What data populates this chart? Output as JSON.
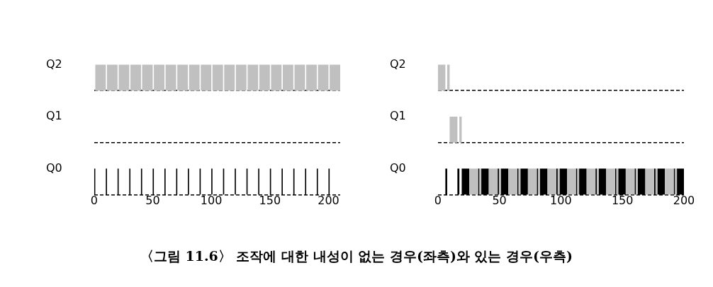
{
  "chart_data": [
    {
      "type": "bar",
      "orientation": "horizontal",
      "categories": [
        "Q2",
        "Q1",
        "Q0"
      ],
      "xlim": [
        0,
        210
      ],
      "xticks": [
        0,
        50,
        100,
        150,
        200
      ],
      "grid": "y",
      "legend": false,
      "annotations": [
        "〈그림 11.6〉 조작에 대한 내성이 없는 경우(좌측)와 있는 경우(우측)"
      ],
      "series": [
        {
          "color": "#c0c0c0",
          "base": [
            1,
            null,
            null
          ],
          "values": [
            9,
            null,
            null
          ]
        },
        {
          "color": "#c0c0c0",
          "base": [
            11,
            null,
            null
          ],
          "values": [
            9,
            null,
            null
          ]
        },
        {
          "color": "#c0c0c0",
          "base": [
            21,
            null,
            null
          ],
          "values": [
            9,
            null,
            null
          ]
        },
        {
          "color": "#c0c0c0",
          "base": [
            31,
            null,
            null
          ],
          "values": [
            9,
            null,
            null
          ]
        },
        {
          "color": "#c0c0c0",
          "base": [
            41,
            null,
            null
          ],
          "values": [
            9,
            null,
            null
          ]
        },
        {
          "color": "#c0c0c0",
          "base": [
            51,
            null,
            null
          ],
          "values": [
            9,
            null,
            null
          ]
        },
        {
          "color": "#c0c0c0",
          "base": [
            61,
            null,
            null
          ],
          "values": [
            9,
            null,
            null
          ]
        },
        {
          "color": "#c0c0c0",
          "base": [
            71,
            null,
            null
          ],
          "values": [
            9,
            null,
            null
          ]
        },
        {
          "color": "#c0c0c0",
          "base": [
            81,
            null,
            null
          ],
          "values": [
            9,
            null,
            null
          ]
        },
        {
          "color": "#c0c0c0",
          "base": [
            91,
            null,
            null
          ],
          "values": [
            9,
            null,
            null
          ]
        },
        {
          "color": "#c0c0c0",
          "base": [
            101,
            null,
            null
          ],
          "values": [
            9,
            null,
            null
          ]
        },
        {
          "color": "#c0c0c0",
          "base": [
            111,
            null,
            null
          ],
          "values": [
            9,
            null,
            null
          ]
        },
        {
          "color": "#c0c0c0",
          "base": [
            121,
            null,
            null
          ],
          "values": [
            9,
            null,
            null
          ]
        },
        {
          "color": "#c0c0c0",
          "base": [
            131,
            null,
            null
          ],
          "values": [
            9,
            null,
            null
          ]
        },
        {
          "color": "#c0c0c0",
          "base": [
            141,
            null,
            null
          ],
          "values": [
            9,
            null,
            null
          ]
        },
        {
          "color": "#c0c0c0",
          "base": [
            151,
            null,
            null
          ],
          "values": [
            9,
            null,
            null
          ]
        },
        {
          "color": "#c0c0c0",
          "base": [
            161,
            null,
            null
          ],
          "values": [
            9,
            null,
            null
          ]
        },
        {
          "color": "#c0c0c0",
          "base": [
            171,
            null,
            null
          ],
          "values": [
            9,
            null,
            null
          ]
        },
        {
          "color": "#c0c0c0",
          "base": [
            181,
            null,
            null
          ],
          "values": [
            9,
            null,
            null
          ]
        },
        {
          "color": "#c0c0c0",
          "base": [
            191,
            null,
            null
          ],
          "values": [
            9,
            null,
            null
          ]
        },
        {
          "color": "#c0c0c0",
          "base": [
            201,
            null,
            null
          ],
          "values": [
            9,
            null,
            null
          ]
        },
        {
          "color": "#000000",
          "base": [
            null,
            null,
            0
          ],
          "values": [
            null,
            null,
            1
          ]
        },
        {
          "color": "#000000",
          "base": [
            null,
            null,
            10
          ],
          "values": [
            null,
            null,
            1
          ]
        },
        {
          "color": "#000000",
          "base": [
            null,
            null,
            20
          ],
          "values": [
            null,
            null,
            1
          ]
        },
        {
          "color": "#000000",
          "base": [
            null,
            null,
            30
          ],
          "values": [
            null,
            null,
            1
          ]
        },
        {
          "color": "#000000",
          "base": [
            null,
            null,
            40
          ],
          "values": [
            null,
            null,
            1
          ]
        },
        {
          "color": "#000000",
          "base": [
            null,
            null,
            50
          ],
          "values": [
            null,
            null,
            1
          ]
        },
        {
          "color": "#000000",
          "base": [
            null,
            null,
            60
          ],
          "values": [
            null,
            null,
            1
          ]
        },
        {
          "color": "#000000",
          "base": [
            null,
            null,
            70
          ],
          "values": [
            null,
            null,
            1
          ]
        },
        {
          "color": "#000000",
          "base": [
            null,
            null,
            80
          ],
          "values": [
            null,
            null,
            1
          ]
        },
        {
          "color": "#000000",
          "base": [
            null,
            null,
            90
          ],
          "values": [
            null,
            null,
            1
          ]
        },
        {
          "color": "#000000",
          "base": [
            null,
            null,
            100
          ],
          "values": [
            null,
            null,
            1
          ]
        },
        {
          "color": "#000000",
          "base": [
            null,
            null,
            110
          ],
          "values": [
            null,
            null,
            1
          ]
        },
        {
          "color": "#000000",
          "base": [
            null,
            null,
            120
          ],
          "values": [
            null,
            null,
            1
          ]
        },
        {
          "color": "#000000",
          "base": [
            null,
            null,
            130
          ],
          "values": [
            null,
            null,
            1
          ]
        },
        {
          "color": "#000000",
          "base": [
            null,
            null,
            140
          ],
          "values": [
            null,
            null,
            1
          ]
        },
        {
          "color": "#000000",
          "base": [
            null,
            null,
            150
          ],
          "values": [
            null,
            null,
            1
          ]
        },
        {
          "color": "#000000",
          "base": [
            null,
            null,
            160
          ],
          "values": [
            null,
            null,
            1
          ]
        },
        {
          "color": "#000000",
          "base": [
            null,
            null,
            170
          ],
          "values": [
            null,
            null,
            1
          ]
        },
        {
          "color": "#000000",
          "base": [
            null,
            null,
            180
          ],
          "values": [
            null,
            null,
            1
          ]
        },
        {
          "color": "#000000",
          "base": [
            null,
            null,
            190
          ],
          "values": [
            null,
            null,
            1
          ]
        },
        {
          "color": "#000000",
          "base": [
            null,
            null,
            200
          ],
          "values": [
            null,
            null,
            1
          ]
        }
      ]
    },
    {
      "type": "bar",
      "orientation": "horizontal",
      "categories": [
        "Q2",
        "Q1",
        "Q0"
      ],
      "xlim": [
        0,
        200
      ],
      "xticks": [
        0,
        50,
        100,
        150,
        200
      ],
      "grid": "y",
      "legend": false,
      "series": [
        {
          "color": "#c0c0c0",
          "base": [
            0,
            9.6,
            25.5
          ],
          "values": [
            6.1,
            6.3,
            7.2
          ]
        },
        {
          "color": "#c0c0c0",
          "base": [
            7.6,
            17.5,
            33.8
          ],
          "values": [
            2,
            1.9,
            1.5
          ]
        },
        {
          "color": "#c0c0c0",
          "base": [
            null,
            null,
            41.4
          ],
          "values": [
            null,
            null,
            7.2
          ]
        },
        {
          "color": "#c0c0c0",
          "base": [
            null,
            null,
            49.7
          ],
          "values": [
            null,
            null,
            1.5
          ]
        },
        {
          "color": "#c0c0c0",
          "base": [
            null,
            null,
            57.3
          ],
          "values": [
            null,
            null,
            7.2
          ]
        },
        {
          "color": "#c0c0c0",
          "base": [
            null,
            null,
            65.6
          ],
          "values": [
            null,
            null,
            1.5
          ]
        },
        {
          "color": "#c0c0c0",
          "base": [
            null,
            null,
            73.2
          ],
          "values": [
            null,
            null,
            7.2
          ]
        },
        {
          "color": "#c0c0c0",
          "base": [
            null,
            null,
            81.5
          ],
          "values": [
            null,
            null,
            1.5
          ]
        },
        {
          "color": "#c0c0c0",
          "base": [
            null,
            null,
            89.1
          ],
          "values": [
            null,
            null,
            7.2
          ]
        },
        {
          "color": "#c0c0c0",
          "base": [
            null,
            null,
            97.4
          ],
          "values": [
            null,
            null,
            1.5
          ]
        },
        {
          "color": "#c0c0c0",
          "base": [
            null,
            null,
            105
          ],
          "values": [
            null,
            null,
            7.2
          ]
        },
        {
          "color": "#c0c0c0",
          "base": [
            null,
            null,
            113.3
          ],
          "values": [
            null,
            null,
            1.5
          ]
        },
        {
          "color": "#c0c0c0",
          "base": [
            null,
            null,
            120.9
          ],
          "values": [
            null,
            null,
            7.2
          ]
        },
        {
          "color": "#c0c0c0",
          "base": [
            null,
            null,
            129.2
          ],
          "values": [
            null,
            null,
            1.5
          ]
        },
        {
          "color": "#c0c0c0",
          "base": [
            null,
            null,
            136.8
          ],
          "values": [
            null,
            null,
            7.2
          ]
        },
        {
          "color": "#c0c0c0",
          "base": [
            null,
            null,
            145.1
          ],
          "values": [
            null,
            null,
            1.5
          ]
        },
        {
          "color": "#c0c0c0",
          "base": [
            null,
            null,
            152.7
          ],
          "values": [
            null,
            null,
            7.2
          ]
        },
        {
          "color": "#c0c0c0",
          "base": [
            null,
            null,
            161
          ],
          "values": [
            null,
            null,
            1.5
          ]
        },
        {
          "color": "#c0c0c0",
          "base": [
            null,
            null,
            168.6
          ],
          "values": [
            null,
            null,
            7.2
          ]
        },
        {
          "color": "#c0c0c0",
          "base": [
            null,
            null,
            176.9
          ],
          "values": [
            null,
            null,
            1.5
          ]
        },
        {
          "color": "#c0c0c0",
          "base": [
            null,
            null,
            184.5
          ],
          "values": [
            null,
            null,
            7.2
          ]
        },
        {
          "color": "#c0c0c0",
          "base": [
            null,
            null,
            192.8
          ],
          "values": [
            null,
            null,
            1.5
          ]
        },
        {
          "color": "#000000",
          "base": [
            null,
            null,
            6.1
          ],
          "values": [
            null,
            null,
            1.5
          ]
        },
        {
          "color": "#000000",
          "base": [
            null,
            null,
            15.9
          ],
          "values": [
            null,
            null,
            1.6
          ]
        },
        {
          "color": "#000000",
          "base": [
            null,
            null,
            19.4
          ],
          "values": [
            null,
            null,
            6.1
          ]
        },
        {
          "color": "#000000",
          "base": [
            null,
            null,
            32.7
          ],
          "values": [
            null,
            null,
            1.1
          ]
        },
        {
          "color": "#000000",
          "base": [
            null,
            null,
            35.3
          ],
          "values": [
            null,
            null,
            6.1
          ]
        },
        {
          "color": "#000000",
          "base": [
            null,
            null,
            48.6
          ],
          "values": [
            null,
            null,
            1.1
          ]
        },
        {
          "color": "#000000",
          "base": [
            null,
            null,
            51.2
          ],
          "values": [
            null,
            null,
            6.1
          ]
        },
        {
          "color": "#000000",
          "base": [
            null,
            null,
            64.5
          ],
          "values": [
            null,
            null,
            1.1
          ]
        },
        {
          "color": "#000000",
          "base": [
            null,
            null,
            67.1
          ],
          "values": [
            null,
            null,
            6.1
          ]
        },
        {
          "color": "#000000",
          "base": [
            null,
            null,
            80.4
          ],
          "values": [
            null,
            null,
            1.1
          ]
        },
        {
          "color": "#000000",
          "base": [
            null,
            null,
            83
          ],
          "values": [
            null,
            null,
            6.1
          ]
        },
        {
          "color": "#000000",
          "base": [
            null,
            null,
            96.3
          ],
          "values": [
            null,
            null,
            1.1
          ]
        },
        {
          "color": "#000000",
          "base": [
            null,
            null,
            98.9
          ],
          "values": [
            null,
            null,
            6.1
          ]
        },
        {
          "color": "#000000",
          "base": [
            null,
            null,
            112.2
          ],
          "values": [
            null,
            null,
            1.1
          ]
        },
        {
          "color": "#000000",
          "base": [
            null,
            null,
            114.8
          ],
          "values": [
            null,
            null,
            6.1
          ]
        },
        {
          "color": "#000000",
          "base": [
            null,
            null,
            128.1
          ],
          "values": [
            null,
            null,
            1.1
          ]
        },
        {
          "color": "#000000",
          "base": [
            null,
            null,
            130.7
          ],
          "values": [
            null,
            null,
            6.1
          ]
        },
        {
          "color": "#000000",
          "base": [
            null,
            null,
            144
          ],
          "values": [
            null,
            null,
            1.1
          ]
        },
        {
          "color": "#000000",
          "base": [
            null,
            null,
            146.6
          ],
          "values": [
            null,
            null,
            6.1
          ]
        },
        {
          "color": "#000000",
          "base": [
            null,
            null,
            159.9
          ],
          "values": [
            null,
            null,
            1.1
          ]
        },
        {
          "color": "#000000",
          "base": [
            null,
            null,
            162.5
          ],
          "values": [
            null,
            null,
            6.1
          ]
        },
        {
          "color": "#000000",
          "base": [
            null,
            null,
            175.8
          ],
          "values": [
            null,
            null,
            1.1
          ]
        },
        {
          "color": "#000000",
          "base": [
            null,
            null,
            178.4
          ],
          "values": [
            null,
            null,
            6.1
          ]
        },
        {
          "color": "#000000",
          "base": [
            null,
            null,
            191.7
          ],
          "values": [
            null,
            null,
            1.1
          ]
        },
        {
          "color": "#000000",
          "base": [
            null,
            null,
            194.3
          ],
          "values": [
            null,
            null,
            5.7
          ]
        }
      ]
    }
  ]
}
